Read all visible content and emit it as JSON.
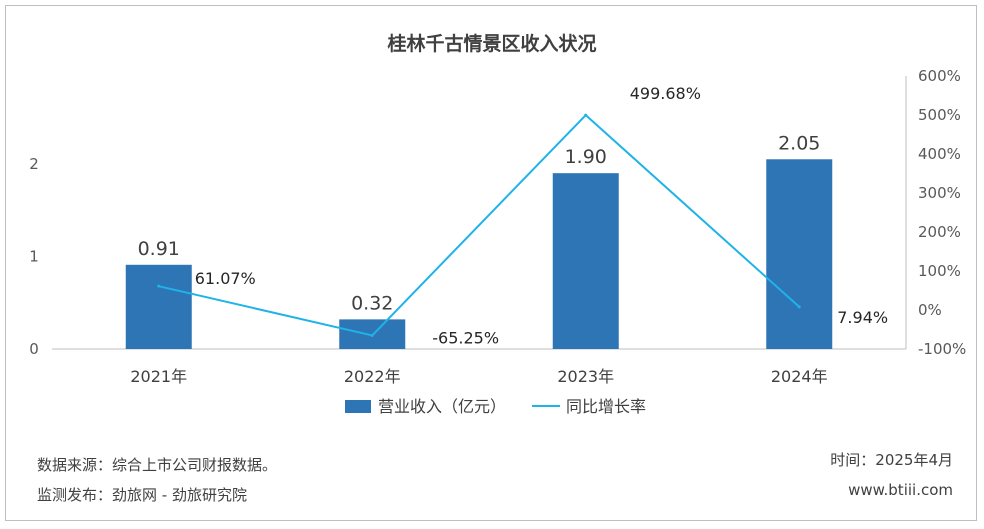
{
  "chart_data": {
    "type": "bar+line",
    "title": "桂林千古情景区收入状况",
    "categories": [
      "2021年",
      "2022年",
      "2023年",
      "2024年"
    ],
    "series": [
      {
        "name": "营业收入（亿元）",
        "type": "bar",
        "axis": "left",
        "color": "#2e75b6",
        "values": [
          0.91,
          0.32,
          1.9,
          2.05
        ],
        "labels": [
          "0.91",
          "0.32",
          "1.90",
          "2.05"
        ]
      },
      {
        "name": "同比增长率",
        "type": "line",
        "axis": "right",
        "color": "#1fb3e8",
        "values": [
          61.07,
          -65.25,
          499.68,
          7.94
        ],
        "labels": [
          "61.07%",
          "-65.25%",
          "499.68%",
          "7.94%"
        ]
      }
    ],
    "y_left": {
      "ticks": [
        0,
        1,
        2
      ],
      "tick_labels": [
        "0",
        "1",
        "2"
      ],
      "range": [
        0,
        2.95
      ]
    },
    "y_right": {
      "ticks": [
        -100,
        0,
        100,
        200,
        300,
        400,
        500,
        600
      ],
      "tick_labels": [
        "-100%",
        "0%",
        "100%",
        "200%",
        "300%",
        "400%",
        "500%",
        "600%"
      ],
      "range": [
        -100,
        600
      ]
    },
    "legend": "bottom-center",
    "grid": false
  },
  "footer": {
    "source": "数据来源：综合上市公司财报数据。",
    "publisher": "监测发布：劲旅网 - 劲旅研究院",
    "date": "时间：2025年4月",
    "site": "www.btiii.com"
  }
}
